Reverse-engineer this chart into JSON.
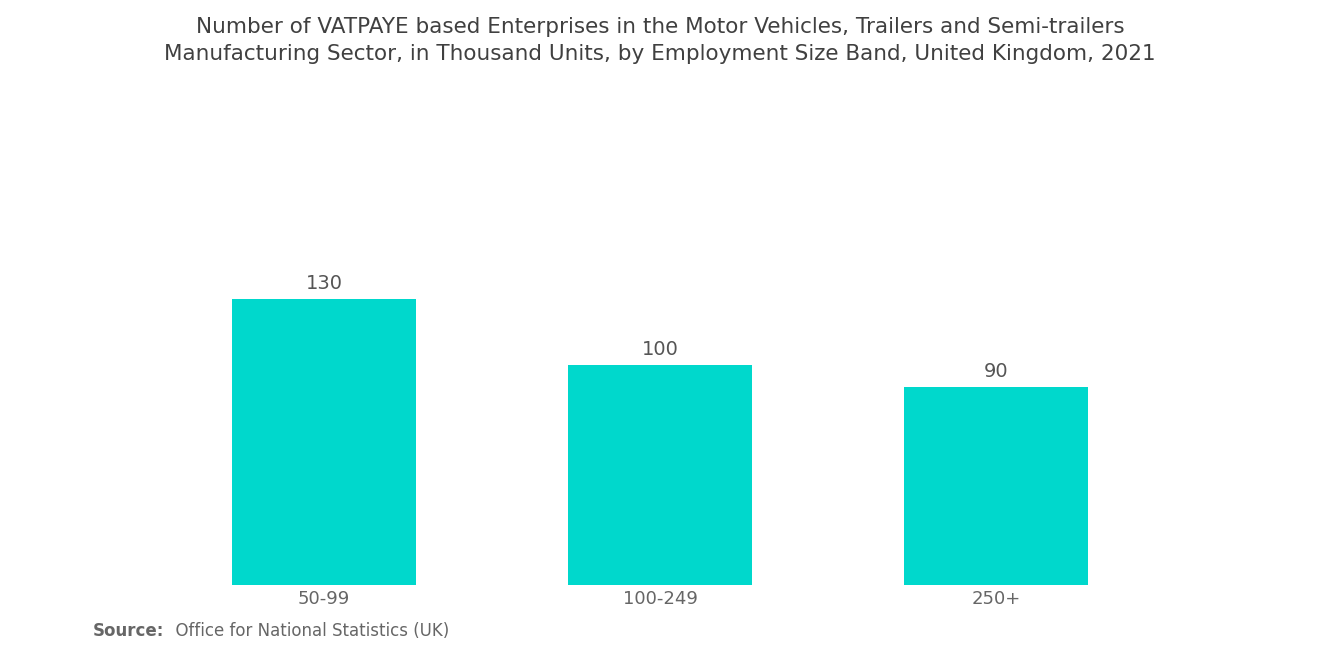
{
  "title_line1": "Number of VATPAYE based Enterprises in the Motor Vehicles, Trailers and Semi-trailers",
  "title_line2": "Manufacturing Sector, in Thousand Units, by Employment Size Band, United Kingdom, 2021",
  "categories": [
    "50-99",
    "100-249",
    "250+"
  ],
  "values": [
    130,
    100,
    90
  ],
  "bar_color": "#00D8CC",
  "background_color": "#ffffff",
  "title_color": "#404040",
  "label_color": "#666666",
  "value_color": "#555555",
  "source_bold": "Source:",
  "source_text": "  Office for National Statistics (UK)",
  "title_fontsize": 15.5,
  "axis_fontsize": 13,
  "value_fontsize": 14,
  "source_fontsize": 12,
  "ylim": [
    0,
    175
  ],
  "bar_width": 0.55
}
